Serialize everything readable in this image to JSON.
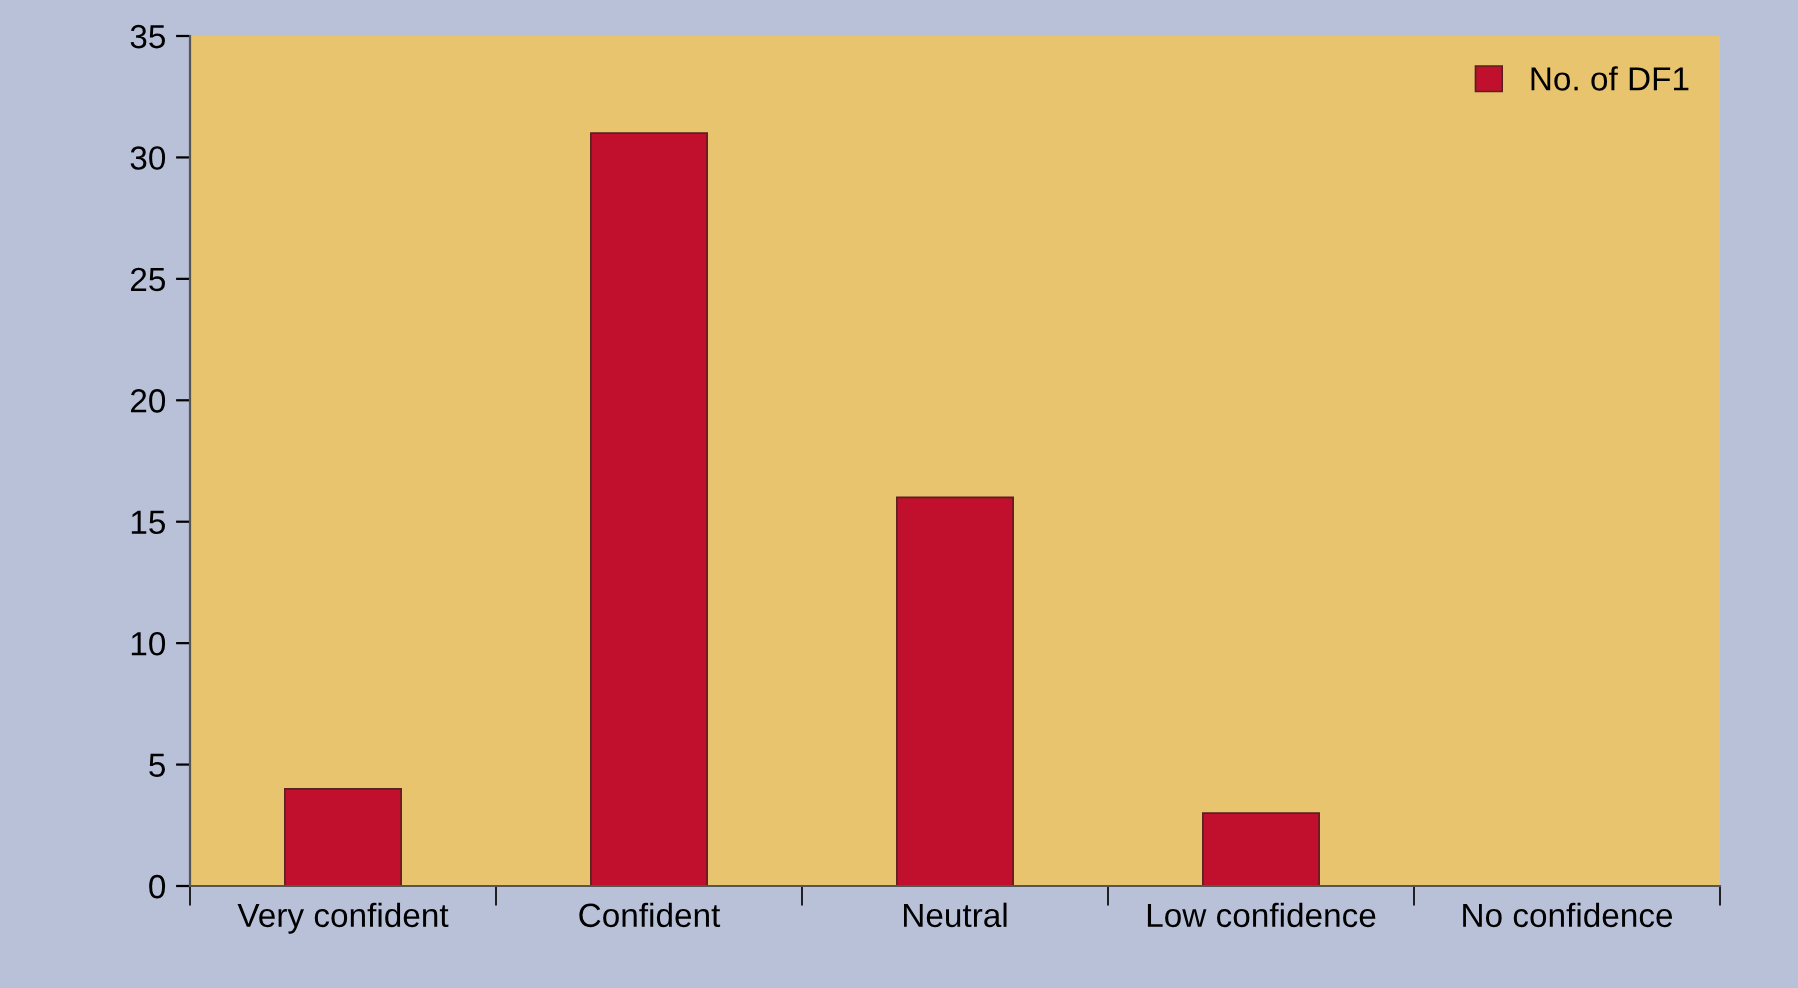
{
  "chart_data": {
    "type": "bar",
    "categories": [
      "Very confident",
      "Confident",
      "Neutral",
      "Low confidence",
      "No confidence"
    ],
    "series": [
      {
        "name": "No. of DF1",
        "color": "#c0102e",
        "values": [
          4,
          31,
          16,
          3,
          0
        ]
      }
    ],
    "ylim": [
      0,
      35
    ],
    "yticks": [
      0,
      5,
      10,
      15,
      20,
      25,
      30,
      35
    ],
    "grid": false,
    "legend": "top right"
  }
}
